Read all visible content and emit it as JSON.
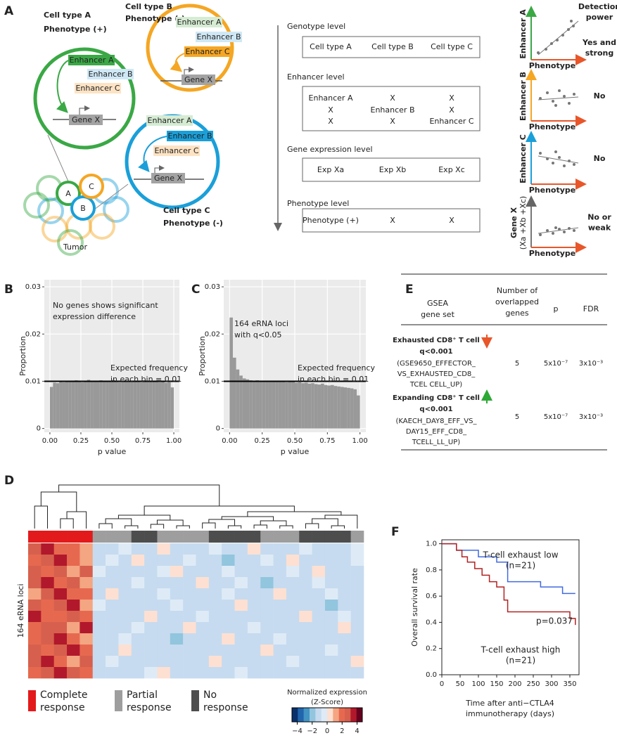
{
  "panel_labels": [
    "A",
    "B",
    "C",
    "D",
    "E",
    "F"
  ],
  "panel_a": {
    "colors": [
      "#3aa845",
      "#f5a623",
      "#1a9fd9"
    ],
    "cell_a": {
      "name": "Cell type A",
      "phenotype": "Phenotype (+)"
    },
    "cell_b": {
      "name": "Cell type B",
      "phenotype": "Phenotype (-)"
    },
    "cell_c": {
      "name": "Cell type C",
      "phenotype": "Phenotype (-)"
    },
    "circle_a": {
      "enhancers": [
        "Enhancer A",
        "Enhancer B",
        "Enhancer C"
      ],
      "gene": "Gene X"
    },
    "circle_b": {
      "enhancers": [
        "Enhancer A",
        "Enhancer B",
        "Enhancer C"
      ],
      "gene": "Gene X"
    },
    "circle_c": {
      "enhancers": [
        "Enhancer A",
        "Enhancer B",
        "Enhancer C"
      ],
      "gene": "Gene X"
    },
    "tumor": {
      "labels": [
        "A",
        "B",
        "C"
      ],
      "caption": "Tumor"
    },
    "levels": [
      {
        "title": "Genotype level",
        "cells": [
          [
            "Cell type A",
            "Cell type B",
            "Cell type C"
          ]
        ]
      },
      {
        "title": "Enhancer level",
        "cells": [
          [
            "Enhancer A",
            "X",
            "X"
          ],
          [
            "X",
            "Enhancer B",
            "X"
          ],
          [
            "X",
            "X",
            "Enhancer C"
          ]
        ]
      },
      {
        "title": "Gene expression level",
        "cells": [
          [
            "Exp Xa",
            "Exp Xb",
            "Exp Xc"
          ]
        ]
      },
      {
        "title": "Phenotype level",
        "cells": [
          [
            "Phenotype (+)",
            "X",
            "X"
          ]
        ]
      }
    ],
    "plots": {
      "header": [
        "Detection",
        "power"
      ],
      "x_label": "Phenotype",
      "items": [
        {
          "y_label": [
            "Enhancer A"
          ],
          "result": [
            "Yes and",
            "strong"
          ]
        },
        {
          "y_label": [
            "Enhancer B"
          ],
          "result": [
            "No"
          ]
        },
        {
          "y_label": [
            "Enhancer C"
          ],
          "result": [
            "No"
          ]
        },
        {
          "y_label": [
            "Gene X",
            "(Xa +Xb +Xc)"
          ],
          "result": [
            "No or",
            "weak"
          ]
        }
      ]
    }
  },
  "panel_b": {
    "type": "histogram",
    "x_label": "p value",
    "y_label": "Proportion",
    "bins": [
      0,
      0.025,
      0.05,
      0.075,
      0.1,
      0.125,
      0.15,
      0.175,
      0.2,
      0.225,
      0.25,
      0.275,
      0.3,
      0.325,
      0.35,
      0.375,
      0.4,
      0.425,
      0.45,
      0.475,
      0.5,
      0.525,
      0.55,
      0.575,
      0.6,
      0.625,
      0.65,
      0.675,
      0.7,
      0.725,
      0.75,
      0.775,
      0.8,
      0.825,
      0.85,
      0.875,
      0.9,
      0.925,
      0.95,
      0.975,
      1
    ],
    "values": [
      0.0088,
      0.0097,
      0.0096,
      0.0099,
      0.0098,
      0.0101,
      0.01,
      0.0099,
      0.0102,
      0.01,
      0.0098,
      0.0101,
      0.0103,
      0.01,
      0.0099,
      0.0101,
      0.0102,
      0.01,
      0.0101,
      0.0099,
      0.0103,
      0.01,
      0.0098,
      0.0101,
      0.0102,
      0.01,
      0.0099,
      0.0101,
      0.01,
      0.0098,
      0.0102,
      0.01,
      0.0099,
      0.0101,
      0.01,
      0.0098,
      0.0099,
      0.0097,
      0.0098,
      0.0087
    ],
    "color": "#999999",
    "hline": 0.01,
    "xlim": [
      -0.045,
      1.045
    ],
    "xticks": [
      {
        "value": 0,
        "label": "0.00"
      },
      {
        "value": 0.25,
        "label": "0.25"
      },
      {
        "value": 0.5,
        "label": "0.50"
      },
      {
        "value": 0.75,
        "label": "0.75"
      },
      {
        "value": 1,
        "label": "1.00"
      }
    ],
    "ylim": [
      -0.0008,
      0.0315
    ],
    "yticks": [
      0,
      0.01,
      0.02,
      0.03
    ],
    "grid": true,
    "annotations": [
      [
        "No genes shows significant",
        "expression difference"
      ],
      [
        "Expected frequency",
        "in each bin = 0.01"
      ]
    ]
  },
  "panel_c": {
    "type": "histogram",
    "x_label": "p value",
    "y_label": "Proportion",
    "bins": [
      0,
      0.025,
      0.05,
      0.075,
      0.1,
      0.125,
      0.15,
      0.175,
      0.2,
      0.225,
      0.25,
      0.275,
      0.3,
      0.325,
      0.35,
      0.375,
      0.4,
      0.425,
      0.45,
      0.475,
      0.5,
      0.525,
      0.55,
      0.575,
      0.6,
      0.625,
      0.65,
      0.675,
      0.7,
      0.725,
      0.75,
      0.775,
      0.8,
      0.825,
      0.85,
      0.875,
      0.9,
      0.925,
      0.95,
      0.975,
      1
    ],
    "values": [
      0.0235,
      0.015,
      0.0125,
      0.0112,
      0.0106,
      0.0104,
      0.0102,
      0.0101,
      0.0102,
      0.01,
      0.0101,
      0.01,
      0.0099,
      0.01,
      0.0101,
      0.0099,
      0.01,
      0.0098,
      0.0099,
      0.01,
      0.0097,
      0.0098,
      0.0096,
      0.0097,
      0.0095,
      0.0096,
      0.0094,
      0.0093,
      0.0095,
      0.0092,
      0.0091,
      0.0092,
      0.009,
      0.0089,
      0.0088,
      0.0087,
      0.0086,
      0.0085,
      0.0083,
      0.007
    ],
    "color": "#999999",
    "hline": 0.01,
    "xlim": [
      -0.045,
      1.045
    ],
    "xticks": [
      {
        "value": 0,
        "label": "0.00"
      },
      {
        "value": 0.25,
        "label": "0.25"
      },
      {
        "value": 0.5,
        "label": "0.50"
      },
      {
        "value": 0.75,
        "label": "0.75"
      },
      {
        "value": 1,
        "label": "1.00"
      }
    ],
    "ylim": [
      -0.0008,
      0.0315
    ],
    "yticks": [
      0,
      0.01,
      0.02,
      0.03
    ],
    "grid": true,
    "annotations": [
      [
        "164 eRNA loci",
        "with q<0.05"
      ],
      [
        "Expected frequency",
        "in each bin = 0.01"
      ]
    ]
  },
  "panel_d": {
    "type": "heatmap",
    "y_label": "164 eRNA loci",
    "column_colors": [
      "#e31a1c",
      "#e31a1c",
      "#e31a1c",
      "#e31a1c",
      "#e31a1c",
      "#9e9e9e",
      "#9e9e9e",
      "#9e9e9e",
      "#4d4d4d",
      "#4d4d4d",
      "#9e9e9e",
      "#9e9e9e",
      "#9e9e9e",
      "#9e9e9e",
      "#4d4d4d",
      "#4d4d4d",
      "#4d4d4d",
      "#4d4d4d",
      "#9e9e9e",
      "#9e9e9e",
      "#9e9e9e",
      "#4d4d4d",
      "#4d4d4d",
      "#4d4d4d",
      "#4d4d4d",
      "#9e9e9e"
    ],
    "values": [
      [
        2.8,
        3.5,
        2.1,
        1.6,
        0.9,
        -0.8,
        -1.0,
        -0.6,
        -1.1,
        -0.9,
        0.4,
        -1.0,
        -0.8,
        -1.2,
        -0.7,
        -0.9,
        -1.0,
        0.3,
        -0.8,
        -1.1,
        -0.9,
        -0.6,
        -1.0,
        -0.8,
        -1.2,
        -0.7
      ],
      [
        1.9,
        2.7,
        3.8,
        2.2,
        1.4,
        -1.0,
        -0.7,
        -1.2,
        0.5,
        -0.9,
        -1.0,
        -0.8,
        -0.6,
        -1.1,
        -0.9,
        -2.0,
        -0.8,
        -1.0,
        -0.7,
        -0.9,
        0.6,
        -1.0,
        -0.8,
        -0.9,
        -1.1,
        -0.6
      ],
      [
        3.1,
        2.0,
        2.9,
        1.1,
        2.5,
        -0.6,
        -0.9,
        -1.0,
        -0.8,
        -1.1,
        -0.7,
        0.3,
        -0.9,
        -1.0,
        -0.8,
        -0.6,
        -1.2,
        -0.9,
        -1.0,
        -0.8,
        -0.7,
        -1.1,
        0.4,
        -0.9,
        -1.0,
        -0.8
      ],
      [
        2.4,
        3.9,
        1.7,
        2.8,
        1.0,
        -0.9,
        -1.1,
        -0.8,
        -0.7,
        -1.0,
        -0.9,
        -0.8,
        -1.1,
        0.5,
        -0.9,
        -1.0,
        -0.7,
        -0.8,
        -2.1,
        -0.9,
        -1.0,
        -0.8,
        -0.6,
        -1.0,
        -0.9,
        -1.1
      ],
      [
        1.5,
        2.6,
        3.3,
        1.9,
        2.2,
        -1.1,
        0.4,
        -0.9,
        -1.0,
        -0.8,
        -0.6,
        -1.0,
        -0.9,
        -0.8,
        -1.1,
        -0.7,
        -0.9,
        -1.0,
        -0.8,
        0.6,
        -0.9,
        -1.1,
        -0.8,
        -0.7,
        -1.0,
        -0.9
      ],
      [
        2.9,
        1.8,
        2.4,
        3.6,
        1.3,
        -0.7,
        -0.9,
        -1.1,
        -0.8,
        -1.0,
        -0.9,
        -0.7,
        -1.0,
        -0.9,
        -0.8,
        -1.1,
        0.3,
        -0.9,
        -1.0,
        -0.8,
        -1.0,
        -0.9,
        -1.1,
        -2.2,
        -0.8,
        -0.9
      ],
      [
        3.4,
        2.3,
        1.6,
        2.7,
        2.0,
        -0.9,
        -1.0,
        -0.8,
        -1.1,
        0.5,
        -0.8,
        -0.9,
        -1.0,
        -0.7,
        -1.2,
        -0.9,
        -0.8,
        -1.0,
        -0.9,
        -1.1,
        -0.8,
        0.4,
        -0.9,
        -1.0,
        -0.7,
        -1.0
      ],
      [
        2.2,
        3.0,
        2.8,
        1.4,
        3.2,
        -1.0,
        -0.8,
        -0.9,
        -0.7,
        -1.0,
        -1.1,
        -0.9,
        0.6,
        -0.8,
        -1.0,
        -0.9,
        -1.1,
        -0.7,
        -0.9,
        -1.0,
        -0.8,
        -0.9,
        -1.0,
        -0.8,
        0.3,
        -1.1
      ],
      [
        1.7,
        2.5,
        3.7,
        2.3,
        1.1,
        -0.8,
        -1.1,
        -0.7,
        -0.9,
        -0.8,
        -1.0,
        -2.0,
        -0.8,
        -0.9,
        -1.1,
        0.4,
        -0.9,
        -0.8,
        -1.0,
        -0.7,
        -0.9,
        -1.0,
        -0.8,
        -1.1,
        -0.9,
        -0.8
      ],
      [
        3.0,
        2.1,
        2.6,
        3.5,
        1.8,
        -1.0,
        -0.9,
        0.4,
        -1.0,
        -0.9,
        -0.8,
        -1.1,
        -0.9,
        -1.0,
        -0.8,
        -0.9,
        -1.0,
        -1.1,
        0.5,
        -0.9,
        -1.0,
        -0.8,
        -0.9,
        -0.7,
        -1.0,
        -0.9
      ],
      [
        2.6,
        3.8,
        2.0,
        1.5,
        2.4,
        -0.9,
        -0.7,
        -1.0,
        -0.8,
        -1.1,
        -0.9,
        -0.8,
        -1.0,
        -0.9,
        0.3,
        -1.0,
        -0.8,
        -0.9,
        -1.1,
        -0.8,
        -0.7,
        -1.0,
        -0.9,
        -0.8,
        -1.1,
        0.4
      ],
      [
        1.9,
        2.8,
        3.4,
        2.6,
        1.6,
        -1.1,
        -0.8,
        -0.9,
        -1.0,
        -0.7,
        0.5,
        -0.9,
        -1.1,
        -0.8,
        -0.9,
        -1.0,
        -0.7,
        -0.9,
        -0.8,
        -1.0,
        -1.1,
        -0.9,
        -0.8,
        -1.0,
        -0.9,
        -0.8
      ]
    ],
    "colorscale": [
      "#08306b",
      "#2166ac",
      "#4393c3",
      "#92c5de",
      "#c6dbef",
      "#deebf7",
      "#fde0d2",
      "#f4a582",
      "#e6694f",
      "#d6604d",
      "#b2182b",
      "#67001f"
    ],
    "zlim": [
      -4.7,
      4.7
    ],
    "zticks": [
      {
        "value": -4,
        "label": "−4"
      },
      {
        "value": -2,
        "label": "−2"
      },
      0,
      2,
      4
    ],
    "scale_title": [
      "Normalized expression",
      "(Z-Score)"
    ],
    "legend": [
      {
        "label": [
          "Complete",
          "response"
        ],
        "color": "#e31a1c"
      },
      {
        "label": [
          "Partial",
          "response"
        ],
        "color": "#9e9e9e"
      },
      {
        "label": [
          "No",
          "response"
        ],
        "color": "#4d4d4d"
      }
    ]
  },
  "panel_e": {
    "header": [
      [
        "GSEA",
        "gene set"
      ],
      [
        "Number of",
        "overlapped",
        "genes"
      ],
      [
        "p"
      ],
      [
        "FDR"
      ]
    ],
    "rows": [
      {
        "title": "Exhausted CD8⁺ T cell",
        "q": "q<0.001",
        "gene_set": [
          "(GSE9650_EFFECTOR_",
          "VS_EXHAUSTED_CD8_",
          "TCEL CELL_UP)"
        ],
        "genes": 5,
        "p": "5x10⁻⁷",
        "fdr": "3x10⁻³"
      },
      {
        "title": "Expanding CD8⁺ T cell",
        "q": "q<0.001",
        "gene_set": [
          "(KAECH_DAY8_EFF_VS_",
          "DAY15_EFF_CD8_",
          "TCELL_LL_UP)"
        ],
        "genes": 5,
        "p": "5x10⁻⁷",
        "fdr": "3x10⁻³"
      }
    ]
  },
  "panel_f": {
    "type": "survival",
    "x_label": [
      "Time after anti−CTLA4",
      "immunotherapy (days)"
    ],
    "y_label": "Overall survival rate",
    "series": [
      {
        "name": [
          "T-cell exhaust low",
          "(n=21)"
        ],
        "color": "#4169e1",
        "x": [
          0,
          40,
          100,
          150,
          180,
          270,
          330,
          365
        ],
        "values": [
          1.0,
          0.95,
          0.9,
          0.86,
          0.71,
          0.67,
          0.62,
          0.62
        ]
      },
      {
        "name": [
          "T-cell exhaust high",
          "(n=21)"
        ],
        "color": "#b22222",
        "x": [
          0,
          40,
          55,
          70,
          90,
          110,
          130,
          150,
          170,
          180,
          250,
          350,
          365
        ],
        "values": [
          1.0,
          0.95,
          0.9,
          0.86,
          0.81,
          0.76,
          0.71,
          0.67,
          0.57,
          0.48,
          0.48,
          0.43,
          0.38
        ]
      }
    ],
    "annotation": "p=0.037",
    "xlim": [
      0,
      375
    ],
    "xticks": [
      0,
      50,
      100,
      150,
      200,
      250,
      300,
      350
    ],
    "ylim": [
      0,
      1.03
    ],
    "yticks": [
      {
        "value": 0,
        "label": "0.0"
      },
      0.2,
      0.4,
      0.6,
      0.8,
      {
        "value": 1,
        "label": "1.0"
      }
    ]
  }
}
